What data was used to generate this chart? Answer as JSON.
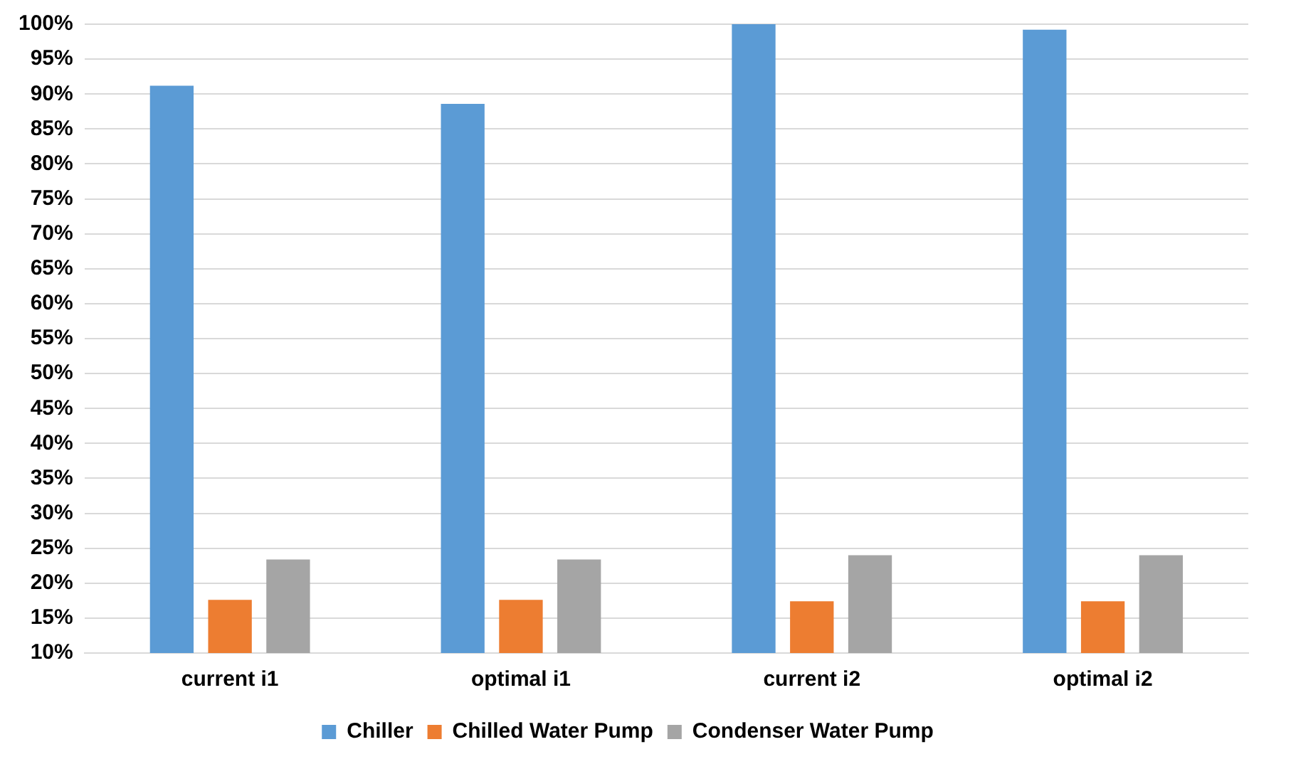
{
  "chart_data": {
    "type": "bar",
    "categories": [
      "current i1",
      "optimal i1",
      "current i2",
      "optimal i2"
    ],
    "series": [
      {
        "name": "Chiller",
        "color": "#5b9bd5",
        "values": [
          91.2,
          88.6,
          100,
          99.2
        ]
      },
      {
        "name": "Chilled Water Pump",
        "color": "#ed7d31",
        "values": [
          17.6,
          17.6,
          17.4,
          17.4
        ]
      },
      {
        "name": "Condenser Water Pump",
        "color": "#a5a5a5",
        "values": [
          23.4,
          23.4,
          24,
          24
        ]
      }
    ],
    "ylim": [
      10,
      100
    ],
    "yticks": [
      {
        "value": 10,
        "label": "10%"
      },
      {
        "value": 15,
        "label": "15%"
      },
      {
        "value": 20,
        "label": "20%"
      },
      {
        "value": 25,
        "label": "25%"
      },
      {
        "value": 30,
        "label": "30%"
      },
      {
        "value": 35,
        "label": "35%"
      },
      {
        "value": 40,
        "label": "40%"
      },
      {
        "value": 45,
        "label": "45%"
      },
      {
        "value": 50,
        "label": "50%"
      },
      {
        "value": 55,
        "label": "55%"
      },
      {
        "value": 60,
        "label": "60%"
      },
      {
        "value": 65,
        "label": "65%"
      },
      {
        "value": 70,
        "label": "70%"
      },
      {
        "value": 75,
        "label": "75%"
      },
      {
        "value": 80,
        "label": "80%"
      },
      {
        "value": 85,
        "label": "85%"
      },
      {
        "value": 90,
        "label": "90%"
      },
      {
        "value": 95,
        "label": "95%"
      },
      {
        "value": 100,
        "label": "100%"
      }
    ],
    "grid": "y",
    "legend": "bottom"
  }
}
